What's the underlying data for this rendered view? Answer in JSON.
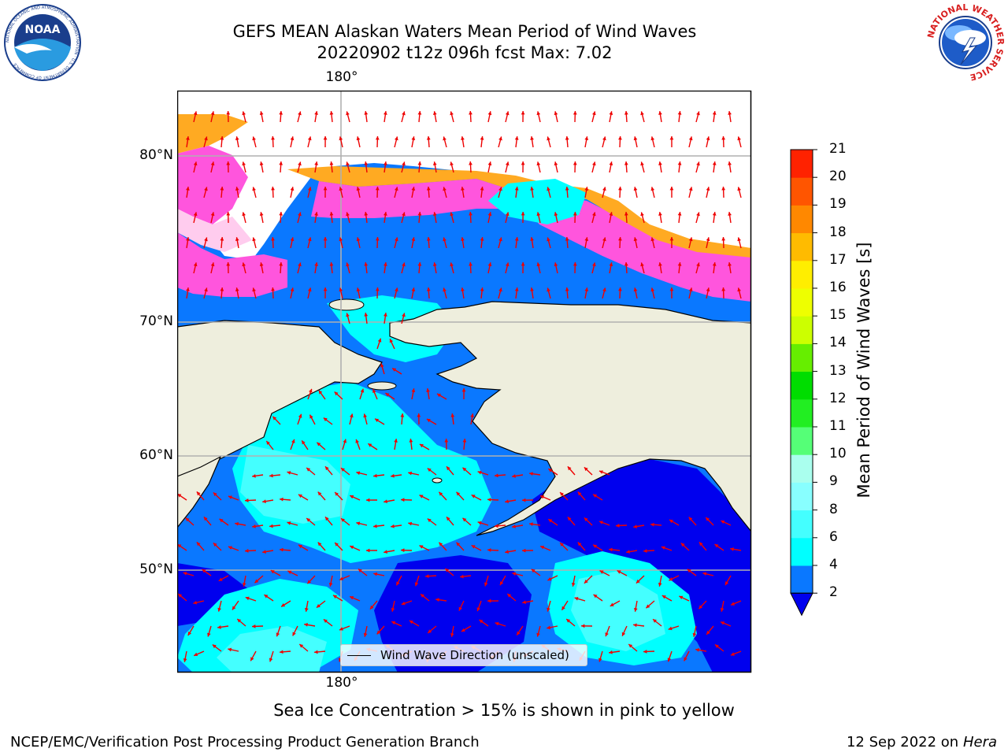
{
  "header": {
    "title_line1": "GEFS MEAN Alaskan Waters Mean Period of Wind Waves",
    "title_line2": "20220902 t12z 096h fcst   Max: 7.02"
  },
  "logos": {
    "left": {
      "text": "NOAA",
      "ring_text": "NATIONAL OCEANIC AND ATMOSPHERIC ADMINISTRATION · U.S. DEPARTMENT OF COMMERCE"
    },
    "right": {
      "ring_text": "NATIONAL WEATHER SERVICE"
    }
  },
  "map": {
    "lon_label_top": "180°",
    "lon_label_bottom": "180°",
    "lat_labels": [
      "80°N",
      "70°N",
      "60°N",
      "50°N"
    ],
    "colors": {
      "land": "#eeeedd",
      "ocean_2_4": "#0a78ff",
      "ocean_lt2": "#0000ee",
      "ocean_4_6": "#00ffff",
      "ocean_6_8": "#44ffff",
      "ice_pink": "#ff55dd",
      "ice_orange": "#ffaa22",
      "ice_yellow": "#ffcc55",
      "arrow": "#ee0000",
      "grid": "#b0b0b0"
    },
    "legend_label": "Wind Wave Direction (unscaled)"
  },
  "colorbar": {
    "label": "Mean Period of Wind Waves [s]",
    "ticks": [
      "2",
      "4",
      "6",
      "8",
      "9",
      "10",
      "11",
      "12",
      "13",
      "14",
      "15",
      "16",
      "17",
      "18",
      "19",
      "20",
      "21"
    ],
    "colors": [
      "#0a78ff",
      "#00ffff",
      "#44ffff",
      "#88ffff",
      "#aaffee",
      "#55ff77",
      "#22ee22",
      "#00dd00",
      "#66ee00",
      "#ccff00",
      "#eeff00",
      "#ffee00",
      "#ffbb00",
      "#ff8800",
      "#ff5500",
      "#ff2200"
    ],
    "under_color": "#0000ee"
  },
  "notes": {
    "ice": "Sea Ice Concentration > 15% is shown in pink to yellow"
  },
  "footer": {
    "left": "NCEP/EMC/Verification Post Processing Product Generation Branch",
    "right_date": "12 Sep 2022 on",
    "right_host": "Hera"
  }
}
